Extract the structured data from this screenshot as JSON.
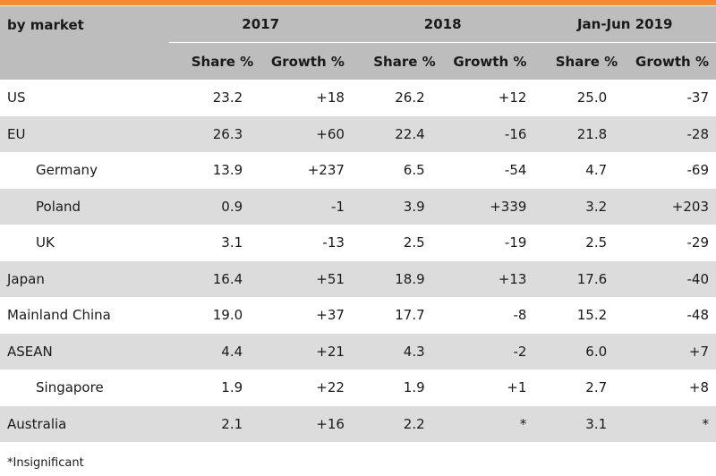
{
  "colors": {
    "accent_bar": "#f58a32",
    "header_bg": "#bdbdbd",
    "stripe_bg": "#dcdcdc"
  },
  "header": {
    "market_label": "by market",
    "periods": [
      "2017",
      "2018",
      "Jan-Jun 2019"
    ],
    "share_label": "Share %",
    "growth_label": "Growth %"
  },
  "rows": [
    {
      "market": "US",
      "indent": false,
      "values": [
        "23.2",
        "+18",
        "26.2",
        "+12",
        "25.0",
        "-37"
      ]
    },
    {
      "market": "EU",
      "indent": false,
      "values": [
        "26.3",
        "+60",
        "22.4",
        "-16",
        "21.8",
        "-28"
      ]
    },
    {
      "market": "Germany",
      "indent": true,
      "values": [
        "13.9",
        "+237",
        "6.5",
        "-54",
        "4.7",
        "-69"
      ]
    },
    {
      "market": "Poland",
      "indent": true,
      "values": [
        "0.9",
        "-1",
        "3.9",
        "+339",
        "3.2",
        "+203"
      ]
    },
    {
      "market": "UK",
      "indent": true,
      "values": [
        "3.1",
        "-13",
        "2.5",
        "-19",
        "2.5",
        "-29"
      ]
    },
    {
      "market": "Japan",
      "indent": false,
      "values": [
        "16.4",
        "+51",
        "18.9",
        "+13",
        "17.6",
        "-40"
      ]
    },
    {
      "market": "Mainland China",
      "indent": false,
      "values": [
        "19.0",
        "+37",
        "17.7",
        "-8",
        "15.2",
        "-48"
      ]
    },
    {
      "market": "ASEAN",
      "indent": false,
      "values": [
        "4.4",
        "+21",
        "4.3",
        "-2",
        "6.0",
        "+7"
      ]
    },
    {
      "market": "Singapore",
      "indent": true,
      "values": [
        "1.9",
        "+22",
        "1.9",
        "+1",
        "2.7",
        "+8"
      ]
    },
    {
      "market": "Australia",
      "indent": false,
      "values": [
        "2.1",
        "+16",
        "2.2",
        "*",
        "3.1",
        "*"
      ]
    }
  ],
  "footnote": "*Insignificant"
}
